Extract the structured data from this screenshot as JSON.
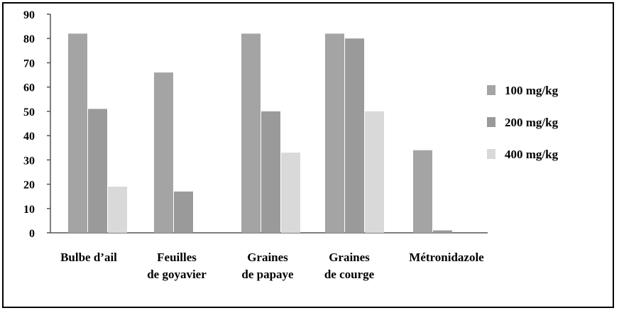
{
  "chart_data": {
    "type": "bar",
    "title": "",
    "xlabel": "",
    "ylabel": "",
    "ylim": [
      0,
      90
    ],
    "yticks": [
      0,
      10,
      20,
      30,
      40,
      50,
      60,
      70,
      80,
      90
    ],
    "grid": false,
    "legend_position": "right",
    "categories": [
      [
        "Bulbe d’ail"
      ],
      [
        "Feuilles",
        "de goyavier"
      ],
      [
        "Graines",
        "de papaye"
      ],
      [
        "Graines",
        "de courge"
      ],
      [
        "Métronidazole"
      ]
    ],
    "series": [
      {
        "name": "100 mg/kg",
        "color": "#a4a4a4",
        "values": [
          82,
          66,
          82,
          82,
          34
        ]
      },
      {
        "name": "200 mg/kg",
        "color": "#9a9a9a",
        "values": [
          51,
          17,
          50,
          80,
          1
        ]
      },
      {
        "name": "400 mg/kg",
        "color": "#d9d9d9",
        "values": [
          19,
          0,
          33,
          50,
          0
        ]
      }
    ]
  }
}
